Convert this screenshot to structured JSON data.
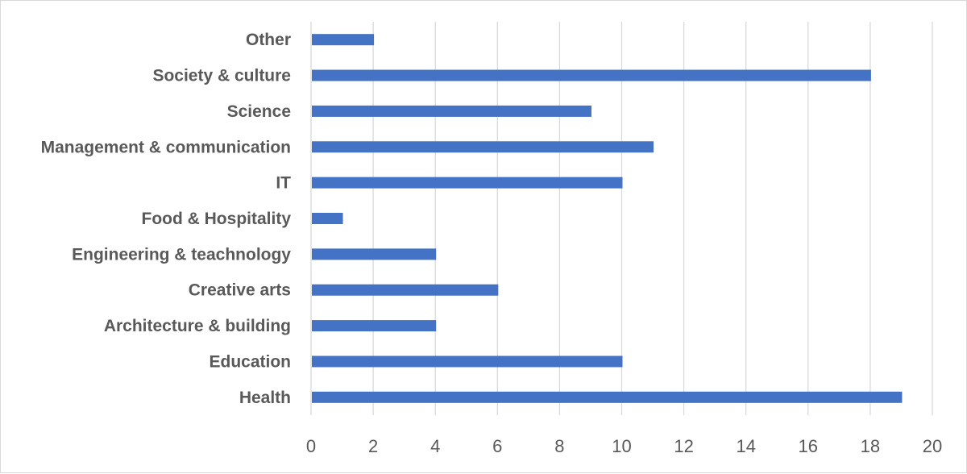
{
  "chart_data": {
    "type": "bar",
    "orientation": "horizontal",
    "categories": [
      "Health",
      "Education",
      "Architecture & building",
      "Creative arts",
      "Engineering & teachnology",
      "Food & Hospitality",
      "IT",
      "Management & communication",
      "Science",
      "Society & culture",
      "Other"
    ],
    "values": [
      19,
      10,
      4,
      6,
      4,
      1,
      10,
      11,
      9,
      18,
      2
    ],
    "x_ticks": [
      "0",
      "2",
      "4",
      "6",
      "8",
      "10",
      "12",
      "14",
      "16",
      "18",
      "20"
    ],
    "xlim": [
      0,
      20
    ],
    "grid": true,
    "legend": "none",
    "bar_color": "#4472c4",
    "grid_color": "#d9d9d9",
    "label_color": "#595959"
  }
}
